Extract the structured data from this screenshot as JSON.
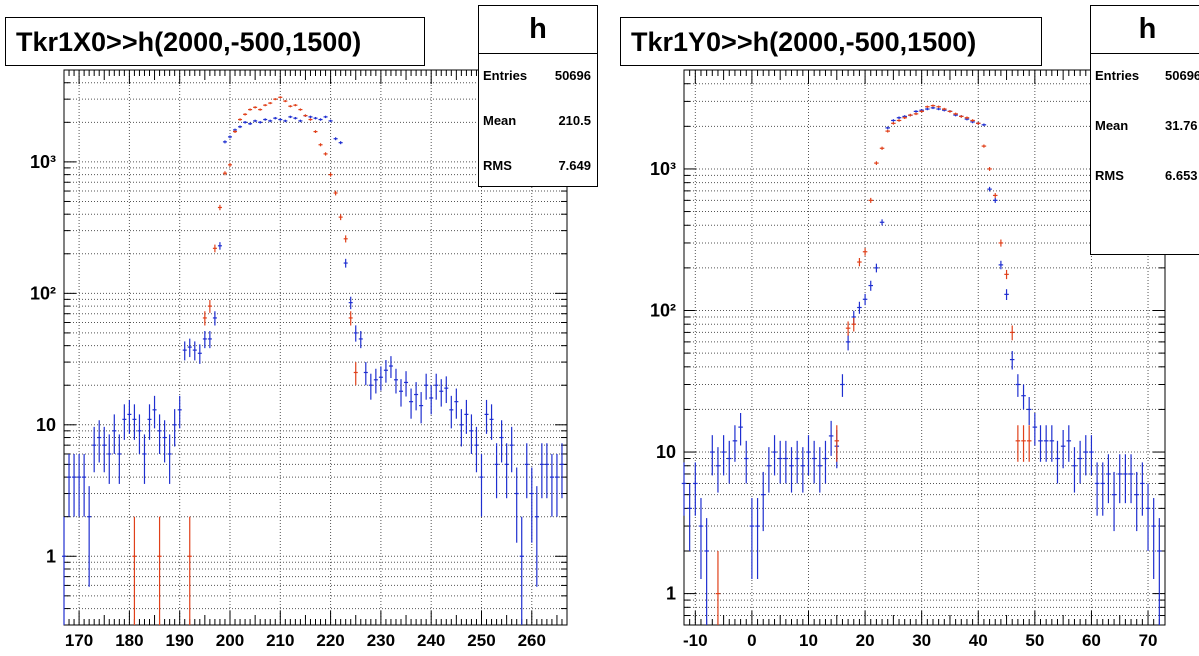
{
  "panels": [
    {
      "id": "left",
      "title": "Tkr1X0>>h(2000,-500,1500)",
      "stats": {
        "name": "h",
        "rows": [
          {
            "label": "Entries",
            "value": "50696"
          },
          {
            "label": "Mean",
            "value": "210.5"
          },
          {
            "label": "RMS",
            "value": "7.649"
          }
        ]
      }
    },
    {
      "id": "right",
      "title": "Tkr1Y0>>h(2000,-500,1500)",
      "stats": {
        "name": "h",
        "rows": [
          {
            "label": "Entries",
            "value": "50696"
          },
          {
            "label": "Mean",
            "value": "31.76"
          },
          {
            "label": "RMS",
            "value": "6.653"
          }
        ]
      }
    }
  ],
  "colors": {
    "series_blue": "#1f2fd0",
    "series_red": "#e0401a",
    "grid": "#555555",
    "frame": "#000000"
  },
  "chart_data": [
    {
      "type": "scatter",
      "title": "Tkr1X0>>h(2000,-500,1500)",
      "xlim": [
        167,
        267
      ],
      "ylim": [
        0.3,
        5000
      ],
      "y_scale": "log",
      "grid": true,
      "x_ticks": [
        170,
        180,
        190,
        200,
        210,
        220,
        230,
        240,
        250,
        260
      ],
      "y_ticks": [
        {
          "value": 1,
          "label": "1"
        },
        {
          "value": 10,
          "label": "10"
        },
        {
          "value": 100,
          "label": "10²"
        },
        {
          "value": 1000,
          "label": "10³"
        }
      ],
      "series": [
        {
          "color": "#1f2fd0",
          "points": [
            [
              167,
              1
            ],
            [
              168,
              4
            ],
            [
              169,
              4
            ],
            [
              170,
              4
            ],
            [
              171,
              4
            ],
            [
              172,
              2
            ],
            [
              173,
              7
            ],
            [
              174,
              8
            ],
            [
              175,
              7
            ],
            [
              176,
              6
            ],
            [
              177,
              9
            ],
            [
              178,
              6
            ],
            [
              179,
              11
            ],
            [
              180,
              12
            ],
            [
              181,
              11
            ],
            [
              182,
              9
            ],
            [
              183,
              6
            ],
            [
              184,
              11
            ],
            [
              185,
              13
            ],
            [
              186,
              9
            ],
            [
              187,
              8
            ],
            [
              188,
              6
            ],
            [
              189,
              10
            ],
            [
              190,
              13
            ],
            [
              191,
              37
            ],
            [
              192,
              39
            ],
            [
              193,
              37
            ],
            [
              194,
              35
            ],
            [
              195,
              45
            ],
            [
              196,
              45
            ],
            [
              197,
              65
            ],
            [
              198,
              230
            ],
            [
              199,
              1420
            ],
            [
              200,
              1550
            ],
            [
              201,
              1750
            ],
            [
              202,
              1850
            ],
            [
              203,
              2000
            ],
            [
              204,
              1950
            ],
            [
              205,
              2050
            ],
            [
              206,
              2000
            ],
            [
              207,
              2100
            ],
            [
              208,
              2050
            ],
            [
              209,
              2150
            ],
            [
              210,
              2100
            ],
            [
              211,
              2050
            ],
            [
              212,
              2200
            ],
            [
              213,
              2150
            ],
            [
              214,
              2050
            ],
            [
              215,
              2250
            ],
            [
              216,
              2200
            ],
            [
              217,
              2150
            ],
            [
              218,
              2100
            ],
            [
              219,
              2200
            ],
            [
              220,
              2050
            ],
            [
              221,
              1500
            ],
            [
              222,
              1400
            ],
            [
              223,
              170
            ],
            [
              224,
              85
            ],
            [
              225,
              50
            ],
            [
              226,
              45
            ],
            [
              227,
              25
            ],
            [
              228,
              20
            ],
            [
              229,
              22
            ],
            [
              230,
              23
            ],
            [
              231,
              26
            ],
            [
              232,
              28
            ],
            [
              233,
              22
            ],
            [
              234,
              18
            ],
            [
              235,
              21
            ],
            [
              236,
              15
            ],
            [
              237,
              17
            ],
            [
              238,
              14
            ],
            [
              239,
              20
            ],
            [
              240,
              16
            ],
            [
              241,
              20
            ],
            [
              242,
              18
            ],
            [
              243,
              19
            ],
            [
              244,
              13
            ],
            [
              245,
              15
            ],
            [
              246,
              10
            ],
            [
              247,
              12
            ],
            [
              248,
              9
            ],
            [
              249,
              7
            ],
            [
              250,
              4
            ],
            [
              251,
              12
            ],
            [
              252,
              11
            ],
            [
              253,
              5
            ],
            [
              254,
              8
            ],
            [
              255,
              5
            ],
            [
              256,
              7
            ],
            [
              257,
              3
            ],
            [
              258,
              1
            ],
            [
              259,
              5
            ],
            [
              260,
              3
            ],
            [
              261,
              2
            ],
            [
              262,
              5
            ],
            [
              263,
              5
            ],
            [
              264,
              4
            ],
            [
              265,
              4
            ],
            [
              266,
              5
            ]
          ]
        },
        {
          "color": "#e0401a",
          "points": [
            [
              181,
              1
            ],
            [
              186,
              1
            ],
            [
              192,
              1
            ],
            [
              195,
              65
            ],
            [
              196,
              80
            ],
            [
              197,
              220
            ],
            [
              198,
              450
            ],
            [
              199,
              820
            ],
            [
              200,
              950
            ],
            [
              201,
              1700
            ],
            [
              202,
              2100
            ],
            [
              203,
              2300
            ],
            [
              204,
              2500
            ],
            [
              205,
              2600
            ],
            [
              206,
              2500
            ],
            [
              207,
              2700
            ],
            [
              208,
              2800
            ],
            [
              209,
              3000
            ],
            [
              210,
              3100
            ],
            [
              211,
              2900
            ],
            [
              212,
              2650
            ],
            [
              213,
              2700
            ],
            [
              214,
              2500
            ],
            [
              215,
              2250
            ],
            [
              216,
              2100
            ],
            [
              217,
              1700
            ],
            [
              218,
              1350
            ],
            [
              219,
              1150
            ],
            [
              220,
              800
            ],
            [
              221,
              580
            ],
            [
              222,
              380
            ],
            [
              223,
              260
            ],
            [
              224,
              65
            ],
            [
              225,
              25
            ]
          ]
        }
      ]
    },
    {
      "type": "scatter",
      "title": "Tkr1Y0>>h(2000,-500,1500)",
      "xlim": [
        -12,
        73
      ],
      "ylim": [
        0.6,
        5000
      ],
      "y_scale": "log",
      "grid": true,
      "x_ticks": [
        -10,
        0,
        10,
        20,
        30,
        40,
        50,
        60,
        70
      ],
      "y_ticks": [
        {
          "value": 1,
          "label": "1"
        },
        {
          "value": 10,
          "label": "10"
        },
        {
          "value": 100,
          "label": "10²"
        },
        {
          "value": 1000,
          "label": "10³"
        }
      ],
      "series": [
        {
          "color": "#1f2fd0",
          "points": [
            [
              -12,
              6
            ],
            [
              -11,
              4
            ],
            [
              -10,
              6
            ],
            [
              -9,
              3
            ],
            [
              -8,
              2
            ],
            [
              -7,
              10
            ],
            [
              -6,
              8
            ],
            [
              -5,
              10
            ],
            [
              -4,
              9
            ],
            [
              -3,
              12
            ],
            [
              -2,
              15
            ],
            [
              -1,
              9
            ],
            [
              0,
              3
            ],
            [
              1,
              3
            ],
            [
              2,
              5
            ],
            [
              3,
              8
            ],
            [
              4,
              10
            ],
            [
              5,
              9
            ],
            [
              6,
              9
            ],
            [
              7,
              8
            ],
            [
              8,
              9
            ],
            [
              9,
              8
            ],
            [
              10,
              10
            ],
            [
              11,
              9
            ],
            [
              12,
              8
            ],
            [
              13,
              9
            ],
            [
              14,
              13
            ],
            [
              15,
              11
            ],
            [
              16,
              30
            ],
            [
              17,
              60
            ],
            [
              18,
              90
            ],
            [
              19,
              105
            ],
            [
              20,
              120
            ],
            [
              21,
              150
            ],
            [
              22,
              200
            ],
            [
              23,
              420
            ],
            [
              24,
              1950
            ],
            [
              25,
              2200
            ],
            [
              26,
              2300
            ],
            [
              27,
              2350
            ],
            [
              28,
              2400
            ],
            [
              29,
              2550
            ],
            [
              30,
              2600
            ],
            [
              31,
              2650
            ],
            [
              32,
              2700
            ],
            [
              33,
              2650
            ],
            [
              34,
              2600
            ],
            [
              35,
              2550
            ],
            [
              36,
              2400
            ],
            [
              37,
              2350
            ],
            [
              38,
              2250
            ],
            [
              39,
              2150
            ],
            [
              40,
              2100
            ],
            [
              41,
              2050
            ],
            [
              42,
              720
            ],
            [
              43,
              600
            ],
            [
              44,
              210
            ],
            [
              45,
              130
            ],
            [
              46,
              45
            ],
            [
              47,
              30
            ],
            [
              48,
              25
            ],
            [
              49,
              20
            ],
            [
              50,
              15
            ],
            [
              51,
              12
            ],
            [
              52,
              12
            ],
            [
              53,
              12
            ],
            [
              54,
              9
            ],
            [
              55,
              11
            ],
            [
              56,
              12
            ],
            [
              57,
              8
            ],
            [
              58,
              9
            ],
            [
              59,
              10
            ],
            [
              60,
              10
            ],
            [
              61,
              6
            ],
            [
              62,
              6
            ],
            [
              63,
              7
            ],
            [
              64,
              5
            ],
            [
              65,
              7
            ],
            [
              66,
              7
            ],
            [
              67,
              7
            ],
            [
              68,
              5
            ],
            [
              69,
              6
            ],
            [
              70,
              4
            ],
            [
              71,
              3
            ],
            [
              72,
              2
            ]
          ]
        },
        {
          "color": "#e0401a",
          "points": [
            [
              -6,
              1
            ],
            [
              15,
              12
            ],
            [
              17,
              75
            ],
            [
              18,
              80
            ],
            [
              19,
              220
            ],
            [
              20,
              260
            ],
            [
              21,
              600
            ],
            [
              22,
              1100
            ],
            [
              23,
              1400
            ],
            [
              24,
              1850
            ],
            [
              25,
              2100
            ],
            [
              26,
              2200
            ],
            [
              27,
              2300
            ],
            [
              28,
              2400
            ],
            [
              29,
              2450
            ],
            [
              30,
              2550
            ],
            [
              31,
              2750
            ],
            [
              32,
              2800
            ],
            [
              33,
              2750
            ],
            [
              34,
              2650
            ],
            [
              35,
              2550
            ],
            [
              36,
              2450
            ],
            [
              37,
              2350
            ],
            [
              38,
              2300
            ],
            [
              39,
              2200
            ],
            [
              40,
              2100
            ],
            [
              41,
              1450
            ],
            [
              42,
              1000
            ],
            [
              43,
              650
            ],
            [
              44,
              300
            ],
            [
              45,
              180
            ],
            [
              46,
              70
            ],
            [
              47,
              12
            ],
            [
              48,
              12
            ],
            [
              49,
              12
            ]
          ]
        }
      ]
    }
  ]
}
